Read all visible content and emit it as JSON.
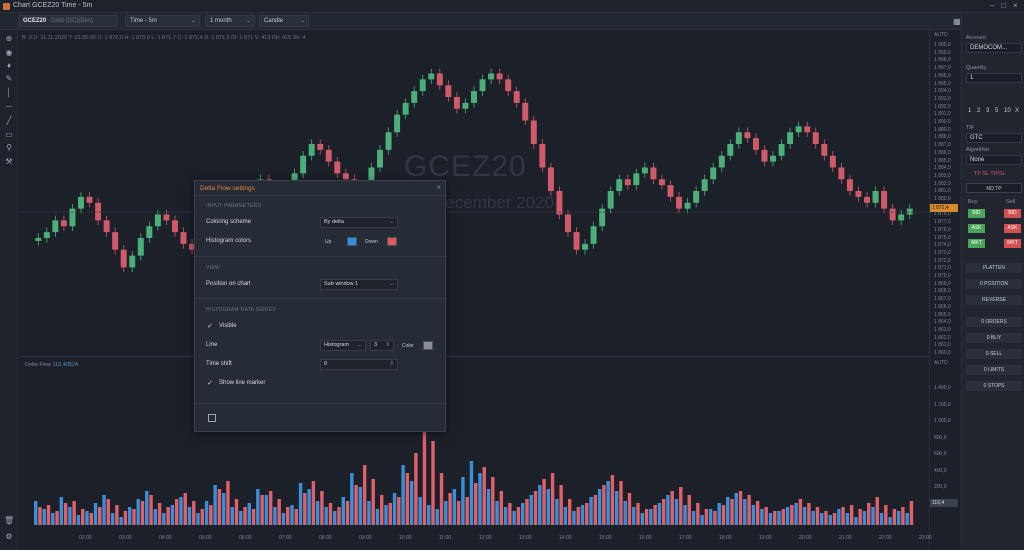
{
  "window": {
    "title": "Chart GCEZ20 Time - 5m"
  },
  "toolbar": {
    "symbol": "GCEZ20",
    "symbol_desc": "Gold (GC)(Dec)",
    "timeframe": "Time - 5m",
    "range": "1 month",
    "style": "Candle"
  },
  "ohlc": "B: 0   D: 11.11.2020   T: 15:35:00   O: 1 872,0   H: 1 873,0   L: 1 871,7   C: 1 872,4   D: 1 871,5   Dl: 1 871   V: 413   Dh: 415   Sh: 4",
  "watermark": {
    "symbol": "GCEZ20",
    "desc": "December 2020"
  },
  "price_axis": {
    "header": "AUTO",
    "labels": [
      "1 900,0",
      "1 899,0",
      "1 898,0",
      "1 897,0",
      "1 896,0",
      "1 895,0",
      "1 894,0",
      "1 893,0",
      "1 892,0",
      "1 891,0",
      "1 890,0",
      "1 889,0",
      "1 888,0",
      "1 887,0",
      "1 886,0",
      "1 885,0",
      "1 884,0",
      "1 883,0",
      "1 882,0",
      "1 881,0",
      "1 880,0",
      "1 879,0",
      "1 878,0",
      "1 877,0",
      "1 876,0",
      "1 875,0",
      "1 874,0",
      "1 873,0",
      "1 872,0",
      "1 871,0",
      "1 870,0",
      "1 869,0",
      "1 868,0",
      "1 867,0",
      "1 866,0",
      "1 865,0",
      "1 864,0",
      "1 863,0",
      "1 862,0",
      "1 861,0",
      "1 860,0"
    ],
    "current_price": "1 872,4",
    "vol_header": "AUTO",
    "vol_labels": [
      "1 400,0",
      "1 200,0",
      "1 000,0",
      "800,0",
      "600,0",
      "400,0",
      "200,0",
      "0,0"
    ],
    "current_vol": "116,4"
  },
  "subpane": {
    "name": "Delta Flow",
    "value": "116,40524"
  },
  "time_axis": {
    "labels": [
      "02:00",
      "03:00",
      "04:00",
      "05:00",
      "06:00",
      "07:00",
      "08:00",
      "09:00",
      "10:00",
      "11:00",
      "12:00",
      "13:00",
      "14:00",
      "15:00",
      "16:00",
      "17:00",
      "18:00",
      "19:00",
      "20:00",
      "21:00",
      "22:00",
      "23:00"
    ]
  },
  "chart_data": {
    "type": "candlestick",
    "title": "GCEZ20",
    "subtitle": "December 2020",
    "ylim": [
      1860,
      1900
    ],
    "y_axis_labels": "price",
    "colors": {
      "up": "#4caf7a",
      "down": "#d05a6a",
      "vol_up": "#3b8fd9",
      "vol_down": "#e0606a"
    },
    "close": [
      1868,
      1869,
      1871,
      1870,
      1873,
      1875,
      1874,
      1871,
      1869,
      1866,
      1863,
      1865,
      1868,
      1870,
      1872,
      1871,
      1869,
      1867,
      1866,
      1868,
      1871,
      1873,
      1872,
      1874,
      1876,
      1877,
      1878,
      1876,
      1875,
      1877,
      1879,
      1882,
      1884,
      1883,
      1881,
      1879,
      1878,
      1876,
      1877,
      1880,
      1883,
      1886,
      1889,
      1891,
      1893,
      1895,
      1896,
      1894,
      1892,
      1890,
      1891,
      1893,
      1895,
      1896,
      1895,
      1893,
      1891,
      1888,
      1884,
      1880,
      1876,
      1872,
      1869,
      1866,
      1867,
      1870,
      1873,
      1876,
      1878,
      1877,
      1879,
      1880,
      1878,
      1877,
      1875,
      1873,
      1874,
      1876,
      1878,
      1880,
      1882,
      1884,
      1886,
      1885,
      1883,
      1881,
      1882,
      1884,
      1886,
      1887,
      1886,
      1884,
      1882,
      1880,
      1878,
      1876,
      1875,
      1874,
      1876,
      1873,
      1871,
      1872,
      1873
    ],
    "volume_up": [
      120,
      80,
      60,
      140,
      90,
      50,
      70,
      110,
      150,
      60,
      40,
      90,
      130,
      170,
      80,
      60,
      100,
      140,
      90,
      60,
      120,
      200,
      160,
      90,
      70,
      110,
      180,
      150,
      90,
      60,
      100,
      210,
      180,
      120,
      90,
      70,
      140,
      260,
      190,
      120,
      80,
      100,
      160,
      300,
      220,
      140,
      100,
      80,
      120,
      180,
      240,
      320,
      260,
      180,
      120,
      90,
      70,
      110,
      150,
      200,
      180,
      130,
      90,
      70,
      100,
      140,
      180,
      220,
      170,
      120,
      90,
      60,
      80,
      110,
      150,
      130,
      100,
      70,
      50,
      80,
      110,
      140,
      160,
      130,
      100,
      80,
      60,
      70,
      90,
      110,
      90,
      70,
      60,
      50,
      80,
      60,
      40,
      70,
      90,
      60,
      40,
      70,
      60
    ],
    "volume_down": [
      90,
      100,
      70,
      110,
      120,
      80,
      60,
      90,
      130,
      100,
      70,
      80,
      120,
      150,
      110,
      90,
      130,
      160,
      120,
      80,
      100,
      180,
      220,
      130,
      90,
      80,
      150,
      170,
      130,
      90,
      80,
      160,
      220,
      170,
      110,
      90,
      120,
      200,
      300,
      230,
      150,
      110,
      140,
      260,
      360,
      580,
      420,
      260,
      160,
      120,
      140,
      210,
      290,
      240,
      170,
      110,
      90,
      130,
      170,
      230,
      260,
      200,
      130,
      90,
      110,
      150,
      200,
      250,
      220,
      160,
      110,
      80,
      100,
      130,
      170,
      190,
      150,
      110,
      80,
      70,
      100,
      130,
      170,
      150,
      120,
      90,
      70,
      80,
      100,
      130,
      110,
      90,
      70,
      60,
      90,
      100,
      80,
      110,
      140,
      100,
      80,
      90,
      120
    ]
  },
  "dialog": {
    "title": "Delta Flow settings",
    "sec_input": "INPUT PARAMETERS",
    "coloring_label": "Coloring scheme",
    "coloring_value": "By delta",
    "hist_colors_label": "Histogram colors",
    "up_label": "Up",
    "down_label": "Down",
    "up_color": "#2f8fe0",
    "down_color": "#e05a5a",
    "sec_view": "VIEW",
    "position_label": "Position on chart",
    "position_value": "Sub window 1",
    "sec_series": "HISTOGRAM DATA SERIES",
    "visible_label": "Visible",
    "line_label": "Line",
    "line_style": "Histogram",
    "line_width": "3",
    "color_label": "Color",
    "line_color": "#8a8f96",
    "time_shift_label": "Time shift",
    "time_shift_value": "0",
    "show_marker_label": "Show line marker"
  },
  "right_panel": {
    "account_label": "Account",
    "account_value": "DEMOCOM...",
    "quantity_label": "Quantity",
    "quantity_value": "1",
    "qty_presets": [
      "1",
      "2",
      "3",
      "5",
      "10",
      "X"
    ],
    "tif_label": "TIF",
    "tif_value": "GTC",
    "algo_label": "Algorithm",
    "algo_value": "None",
    "tp_label": "TP SL TP/SL",
    "no_tp": "NO TP",
    "buy_label": "Buy",
    "sell_label": "Sell",
    "bid_label": "BID",
    "ask_label": "ASK",
    "mkt_label": "MKT",
    "btn_flatten": "FLATTEN",
    "btn_position": "0 POSITION",
    "btn_reverse": "REVERSE",
    "btn_orders": "0 ORDERS",
    "btn_buy": "0 BUY",
    "btn_sell": "0 SELL",
    "btn_limits": "0 LIMITS",
    "btn_stops": "0 STOPS"
  }
}
